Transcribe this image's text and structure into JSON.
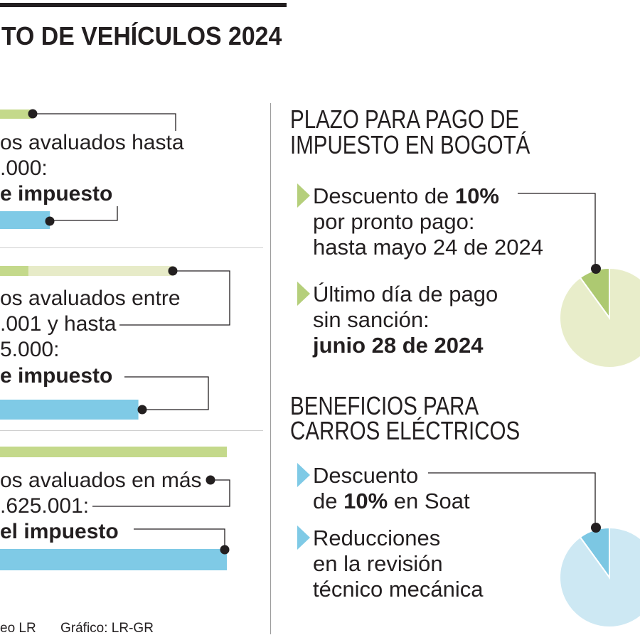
{
  "title": "TO DE VEHÍCULOS 2024",
  "left": {
    "sections": [
      {
        "lines": [
          "os avaluados hasta",
          ".000:"
        ],
        "bold": "e impuesto"
      },
      {
        "lines": [
          "os avaluados entre",
          ".001 y hasta",
          "5.000:"
        ],
        "bold": "e impuesto"
      },
      {
        "lines": [
          "os avaluados en más",
          ".625.001:"
        ],
        "bold": "el impuesto"
      }
    ]
  },
  "right": {
    "plazo": {
      "title_lines": [
        "PLAZO PARA PAGO DE",
        "IMPUESTO EN BOGOTÁ"
      ],
      "item1": {
        "text": "Descuento de ",
        "bold": "10%",
        "line2": "por pronto pago:",
        "line3": "hasta mayo 24 de 2024"
      },
      "item2": {
        "line1": "Último día de pago",
        "line2": "sin sanción:",
        "line3": "junio 28 de 2024"
      }
    },
    "beneficios": {
      "title_lines": [
        "BENEFICIOS PARA",
        "CARROS ELÉCTRICOS"
      ],
      "item1": {
        "line1": "Descuento",
        "pre": "de ",
        "bold": "10%",
        "post": " en Soat"
      },
      "item2": {
        "line1": "Reducciones",
        "line2": "en la revisión",
        "line3": "técnico mecánica"
      }
    }
  },
  "footer": {
    "source": "eo LR",
    "graphic": "Gráfico: LR-GR"
  },
  "colors": {
    "text": "#231f20",
    "green": "#c4d98b",
    "green_light": "#e7ebc8",
    "blue": "#7fcae6",
    "bullet_green": "#b5cf7b",
    "bullet_blue": "#7fcae6",
    "pie1_small": "#adc971",
    "pie1_large": "#e8edca",
    "pie2_small": "#7cc7e3",
    "pie2_large": "#cde8f3"
  },
  "chart_data": [
    {
      "type": "bar",
      "green": [
        0.14,
        0.125,
        1.0
      ],
      "green_light": [
        0,
        0.76,
        0
      ],
      "blue": [
        0.22,
        0.61,
        1.0
      ]
    },
    {
      "type": "pie",
      "values": [
        10,
        90
      ]
    },
    {
      "type": "pie",
      "values": [
        10,
        90
      ]
    }
  ]
}
